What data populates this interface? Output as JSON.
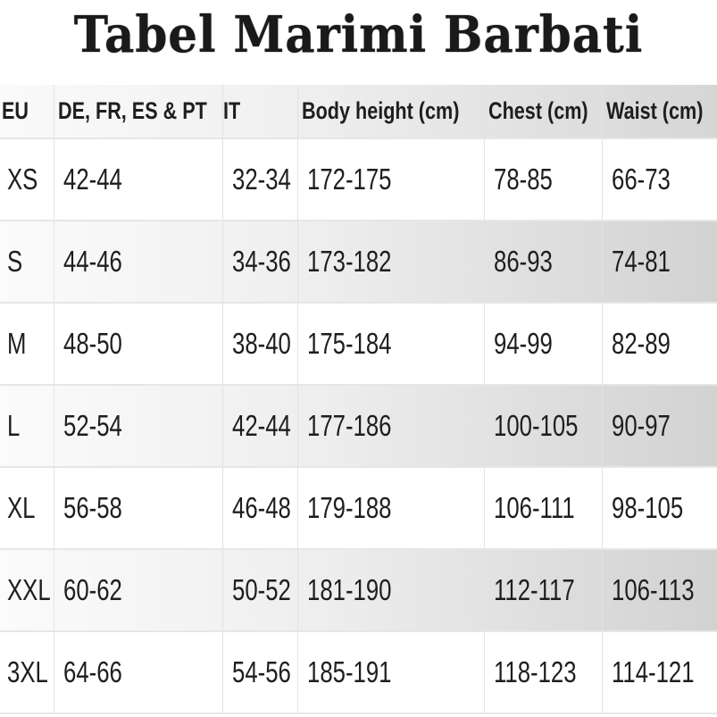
{
  "title": "Tabel Marimi Barbati",
  "table": {
    "headers": [
      "EU",
      "DE, FR, ES & PT",
      "IT",
      "Body height (cm)",
      "Chest (cm)",
      "Waist (cm)"
    ],
    "rows": [
      [
        "XS",
        "42-44",
        "32-34",
        "172-175",
        "78-85",
        "66-73"
      ],
      [
        "S",
        "44-46",
        "34-36",
        "173-182",
        "86-93",
        "74-81"
      ],
      [
        "M",
        "48-50",
        "38-40",
        "175-184",
        "94-99",
        "82-89"
      ],
      [
        "L",
        "52-54",
        "42-44",
        "177-186",
        "100-105",
        "90-97"
      ],
      [
        "XL",
        "56-58",
        "46-48",
        "179-188",
        "106-111",
        "98-105"
      ],
      [
        "XXL",
        "60-62",
        "50-52",
        "181-190",
        "112-117",
        "106-113"
      ],
      [
        "3XL",
        "64-66",
        "54-56",
        "185-191",
        "118-123",
        "114-121"
      ]
    ]
  }
}
